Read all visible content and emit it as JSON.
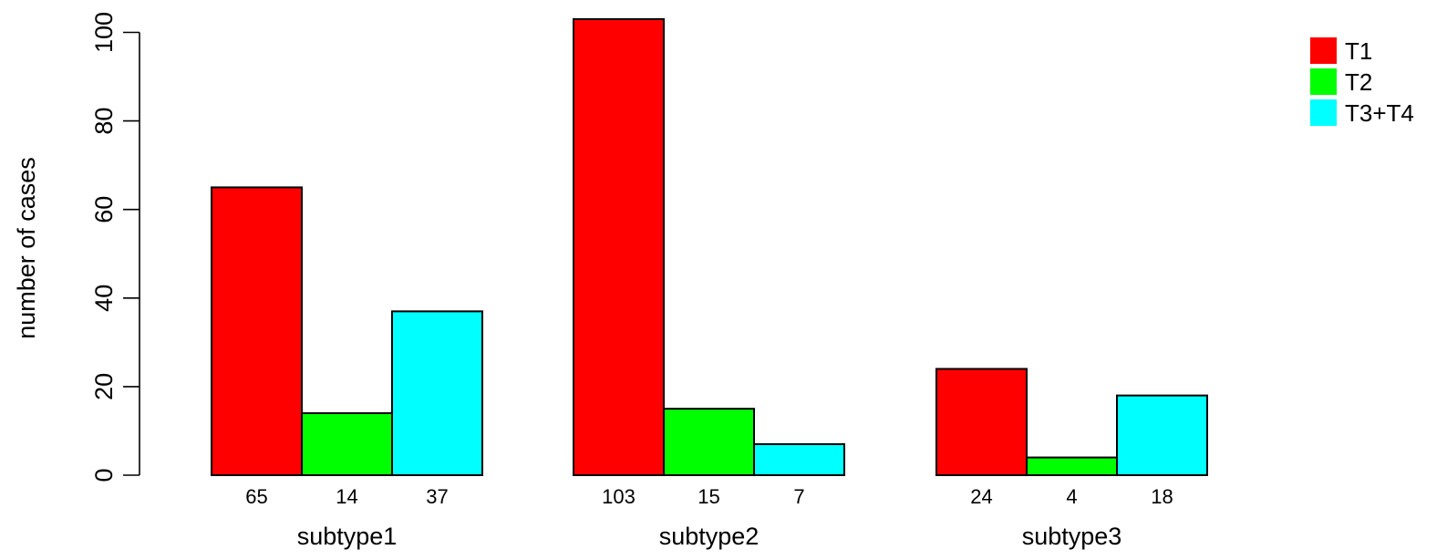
{
  "chart_data": {
    "type": "bar",
    "categories": [
      "subtype1",
      "subtype2",
      "subtype3"
    ],
    "series": [
      {
        "name": "T1",
        "values": [
          65,
          103,
          24
        ],
        "color": "#ff0000"
      },
      {
        "name": "T2",
        "values": [
          14,
          15,
          4
        ],
        "color": "#00ff00"
      },
      {
        "name": "T3+T4",
        "values": [
          37,
          7,
          18
        ],
        "color": "#00ffff"
      }
    ],
    "title": "",
    "xlabel": "",
    "ylabel": "number of cases",
    "ylim": [
      0,
      103
    ],
    "yticks": [
      "0",
      "20",
      "40",
      "60",
      "80",
      "100"
    ],
    "bar_labels": [
      [
        "65",
        "14",
        "37"
      ],
      [
        "103",
        "15",
        "7"
      ],
      [
        "24",
        "4",
        "18"
      ]
    ],
    "grid": false,
    "legend": {
      "position": "top-right",
      "entries": [
        "T1",
        "T2",
        "T3+T4"
      ]
    }
  }
}
